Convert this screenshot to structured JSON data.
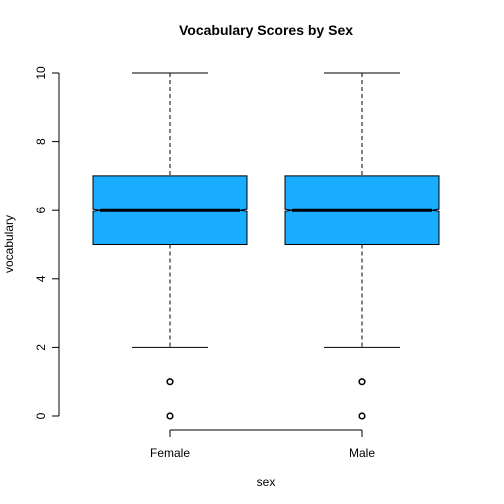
{
  "chart_data": {
    "type": "boxplot",
    "title": "Vocabulary Scores by Sex",
    "xlabel": "sex",
    "ylabel": "vocabulary",
    "categories": [
      "Female",
      "Male"
    ],
    "ylim": [
      0,
      10
    ],
    "yticks": [
      0,
      2,
      4,
      6,
      8,
      10
    ],
    "notched": true,
    "box_color": "#1AADFF",
    "boxes": [
      {
        "name": "Female",
        "whisker_low": 2,
        "q1": 5,
        "median": 6,
        "q3": 7,
        "whisker_high": 10,
        "notch_low": 5.97,
        "notch_high": 6.03,
        "outliers": [
          1,
          0
        ]
      },
      {
        "name": "Male",
        "whisker_low": 2,
        "q1": 5,
        "median": 6,
        "q3": 7,
        "whisker_high": 10,
        "notch_low": 5.97,
        "notch_high": 6.03,
        "outliers": [
          1,
          0
        ]
      }
    ]
  }
}
